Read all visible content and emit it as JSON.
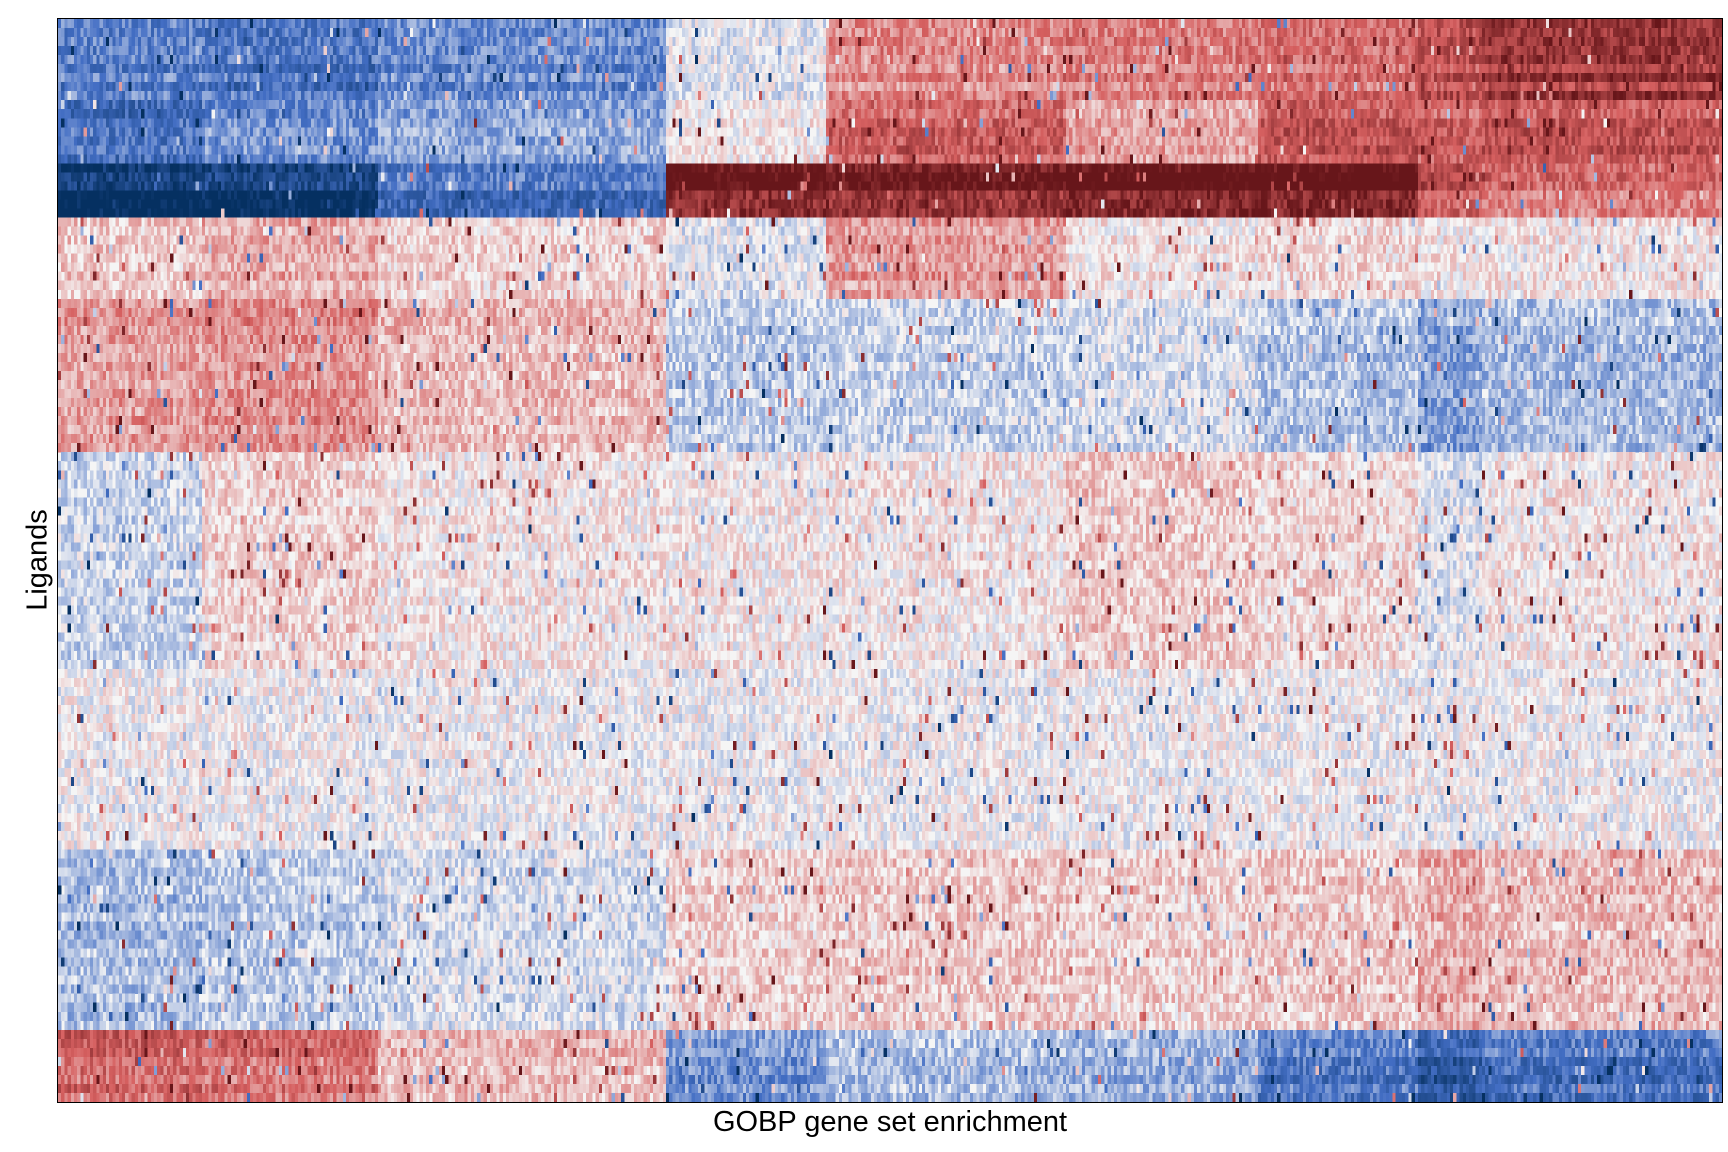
{
  "chart_data": {
    "type": "heatmap",
    "title": "",
    "xlabel": "GOBP gene set enrichment",
    "ylabel": "Ligands",
    "x_ticks": [],
    "y_ticks": [],
    "legend": "none",
    "grid": false,
    "colormap": {
      "name": "diverging blue-white-red",
      "low": "#053061",
      "mid": "#f5f5f5",
      "high": "#67161a"
    },
    "value_range": [
      -1,
      1
    ],
    "n_rows": 120,
    "n_cols": 520,
    "row_blocks": [
      {
        "rows": [
          0,
          9
        ],
        "values": [
          -0.45,
          -0.5,
          -0.4,
          -0.05,
          0.35,
          0.4,
          0.45,
          0.6,
          0.75
        ]
      },
      {
        "rows": [
          9,
          16
        ],
        "values": [
          -0.55,
          -0.4,
          -0.3,
          0.05,
          0.5,
          0.25,
          0.55,
          0.5,
          0.55
        ]
      },
      {
        "rows": [
          16,
          22
        ],
        "values": [
          -0.95,
          -0.9,
          -0.5,
          0.95,
          0.9,
          1.0,
          1.0,
          0.6,
          0.45
        ]
      },
      {
        "rows": [
          22,
          31
        ],
        "values": [
          0.15,
          0.25,
          0.12,
          -0.05,
          0.3,
          0.05,
          0.1,
          0.05,
          0.05
        ]
      },
      {
        "rows": [
          31,
          48
        ],
        "values": [
          0.3,
          0.35,
          0.2,
          -0.15,
          -0.12,
          -0.08,
          -0.18,
          -0.3,
          -0.2
        ]
      },
      {
        "rows": [
          48,
          72
        ],
        "values": [
          -0.12,
          0.12,
          0.05,
          0.04,
          0.05,
          0.15,
          0.1,
          -0.06,
          0.05
        ]
      },
      {
        "rows": [
          72,
          92
        ],
        "values": [
          0.0,
          0.0,
          0.0,
          0.0,
          0.0,
          0.0,
          0.0,
          0.0,
          0.0
        ]
      },
      {
        "rows": [
          92,
          112
        ],
        "values": [
          -0.2,
          -0.15,
          -0.08,
          0.12,
          0.15,
          0.12,
          0.15,
          0.25,
          0.2
        ]
      },
      {
        "rows": [
          112,
          120
        ],
        "values": [
          0.5,
          0.45,
          0.2,
          -0.35,
          -0.2,
          -0.25,
          -0.45,
          -0.65,
          -0.5
        ]
      }
    ],
    "col_blocks": [
      [
        0,
        45
      ],
      [
        45,
        100
      ],
      [
        100,
        190
      ],
      [
        190,
        240
      ],
      [
        240,
        315
      ],
      [
        315,
        375
      ],
      [
        375,
        425
      ],
      [
        425,
        445
      ],
      [
        445,
        520
      ]
    ]
  }
}
